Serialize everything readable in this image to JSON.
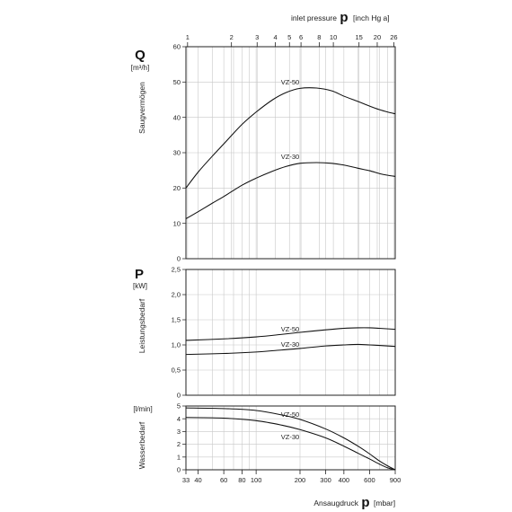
{
  "top_axis": {
    "label": "inlet pressure",
    "symbol": "p",
    "unit": "[inch Hg a]",
    "ticks": [
      "1",
      "2",
      "3",
      "4",
      "5",
      "6",
      "8",
      "10",
      "15",
      "20",
      "26"
    ],
    "tick_inHg": [
      1,
      2,
      3,
      4,
      5,
      6,
      8,
      10,
      15,
      20,
      26
    ]
  },
  "bottom_axis": {
    "label": "Ansaugdruck",
    "symbol": "p",
    "unit": "[mbar]",
    "ticks": [
      "33",
      "40",
      "60",
      "80",
      "100",
      "200",
      "300",
      "400",
      "600",
      "900"
    ],
    "tick_mbar": [
      33,
      40,
      60,
      80,
      100,
      200,
      300,
      400,
      600,
      900
    ],
    "minor_mbar": [
      50,
      70,
      90,
      500,
      700,
      800
    ]
  },
  "chart_data": [
    {
      "type": "line",
      "x_scale": "log",
      "x_unit": "mbar",
      "xlim": [
        33,
        900
      ],
      "ylim": [
        0,
        60
      ],
      "y_ticks": [
        "0",
        "10",
        "20",
        "30",
        "40",
        "50",
        "60"
      ],
      "y_tick_values": [
        0,
        10,
        20,
        30,
        40,
        50,
        60
      ],
      "symbol": "Q",
      "unit": "[m³/h]",
      "ylabel": "Saugvermögen",
      "grid": true,
      "series": [
        {
          "name": "VZ-50",
          "x": [
            33,
            40,
            50,
            60,
            80,
            100,
            130,
            160,
            200,
            260,
            330,
            400,
            500,
            600,
            700,
            800,
            900
          ],
          "y": [
            20.0,
            24.5,
            29.0,
            32.5,
            38.0,
            41.5,
            45.0,
            47.0,
            48.2,
            48.3,
            47.5,
            46.0,
            44.5,
            43.2,
            42.2,
            41.5,
            41.0
          ]
        },
        {
          "name": "VZ-30",
          "x": [
            33,
            40,
            50,
            60,
            80,
            100,
            130,
            160,
            200,
            260,
            330,
            400,
            500,
            600,
            700,
            800,
            900
          ],
          "y": [
            11.3,
            13.3,
            15.7,
            17.6,
            20.8,
            22.8,
            24.8,
            26.1,
            27.0,
            27.2,
            27.0,
            26.5,
            25.6,
            24.9,
            24.1,
            23.6,
            23.3
          ]
        }
      ]
    },
    {
      "type": "line",
      "x_scale": "log",
      "x_unit": "mbar",
      "xlim": [
        33,
        900
      ],
      "ylim": [
        0,
        2.5
      ],
      "y_ticks": [
        "0",
        "0,5",
        "1,0",
        "1,5",
        "2,0",
        "2,5"
      ],
      "y_tick_values": [
        0,
        0.5,
        1.0,
        1.5,
        2.0,
        2.5
      ],
      "symbol": "P",
      "unit": "[kW]",
      "ylabel": "Leistungsbedarf",
      "grid": true,
      "series": [
        {
          "name": "VZ-50",
          "x": [
            33,
            60,
            100,
            150,
            200,
            300,
            400,
            500,
            600,
            700,
            900
          ],
          "y": [
            1.09,
            1.12,
            1.16,
            1.21,
            1.25,
            1.3,
            1.33,
            1.34,
            1.34,
            1.33,
            1.31
          ]
        },
        {
          "name": "VZ-30",
          "x": [
            33,
            60,
            100,
            150,
            200,
            300,
            400,
            500,
            600,
            700,
            900
          ],
          "y": [
            0.81,
            0.83,
            0.86,
            0.9,
            0.93,
            0.98,
            1.0,
            1.01,
            1.0,
            0.99,
            0.97
          ]
        }
      ]
    },
    {
      "type": "line",
      "x_scale": "log",
      "x_unit": "mbar",
      "xlim": [
        33,
        900
      ],
      "ylim": [
        0,
        5
      ],
      "y_ticks": [
        "0",
        "1",
        "2",
        "3",
        "4",
        "5"
      ],
      "y_tick_values": [
        0,
        1,
        2,
        3,
        4,
        5
      ],
      "unit": "[l/min]",
      "ylabel": "Wasserbedarf",
      "grid": true,
      "series": [
        {
          "name": "VZ-50",
          "x": [
            33,
            60,
            100,
            150,
            200,
            300,
            400,
            500,
            600,
            700,
            800,
            900
          ],
          "y": [
            4.85,
            4.8,
            4.65,
            4.3,
            3.95,
            3.2,
            2.5,
            1.85,
            1.25,
            0.7,
            0.3,
            0.0
          ]
        },
        {
          "name": "VZ-30",
          "x": [
            33,
            60,
            100,
            150,
            200,
            300,
            400,
            500,
            600,
            700,
            800,
            900
          ],
          "y": [
            4.1,
            4.05,
            3.85,
            3.5,
            3.15,
            2.5,
            1.85,
            1.3,
            0.85,
            0.45,
            0.15,
            0.0
          ]
        }
      ]
    }
  ]
}
